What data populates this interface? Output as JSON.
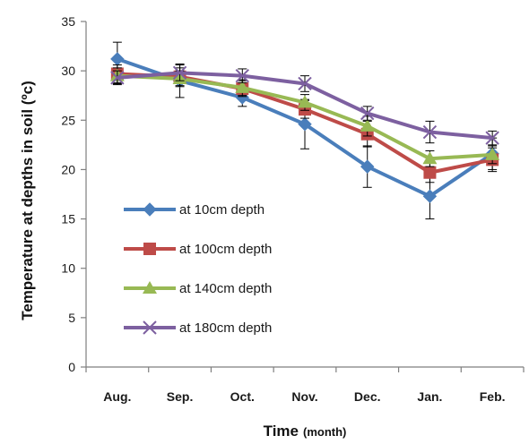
{
  "chart_data": {
    "type": "line",
    "title": "",
    "xlabel": "Time",
    "xlabel_unit": "(month)",
    "ylabel": "Temperature at depths in soil (ºc)",
    "ylim": [
      0,
      35
    ],
    "yticks": [
      0,
      5,
      10,
      15,
      20,
      25,
      30,
      35
    ],
    "categories": [
      "Aug.",
      "Sep.",
      "Oct.",
      "Nov.",
      "Dec.",
      "Jan.",
      "Feb."
    ],
    "grid": false,
    "legend_position": "left-middle",
    "series": [
      {
        "name": "at 10cm depth",
        "color": "#4a7ebb",
        "marker": "diamond",
        "values": [
          31.2,
          29.0,
          27.3,
          24.6,
          20.3,
          17.3,
          21.6
        ],
        "errors": [
          1.7,
          1.7,
          0.9,
          2.5,
          2.1,
          2.3,
          1.6
        ]
      },
      {
        "name": "at 100cm depth",
        "color": "#be4b48",
        "marker": "square",
        "values": [
          29.7,
          29.4,
          28.2,
          26.1,
          23.6,
          19.7,
          21.0
        ],
        "errors": [
          0.9,
          0.9,
          0.8,
          0.9,
          1.3,
          1.0,
          1.2
        ]
      },
      {
        "name": "at 140cm depth",
        "color": "#98b954",
        "marker": "triangle",
        "values": [
          29.5,
          29.2,
          28.3,
          26.8,
          24.4,
          21.1,
          21.5
        ],
        "errors": [
          0.8,
          0.8,
          0.8,
          0.8,
          1.0,
          0.8,
          0.9
        ]
      },
      {
        "name": "at 180cm depth",
        "color": "#7d60a0",
        "marker": "x",
        "values": [
          29.3,
          29.8,
          29.5,
          28.7,
          25.7,
          23.8,
          23.2
        ],
        "errors": [
          0.7,
          0.8,
          0.7,
          0.8,
          0.7,
          1.1,
          0.7
        ]
      }
    ]
  }
}
